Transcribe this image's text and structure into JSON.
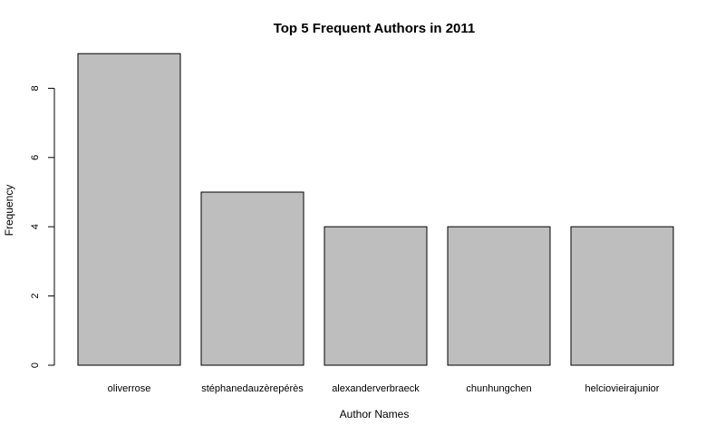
{
  "chart_data": {
    "type": "bar",
    "title": "Top 5 Frequent Authors in 2011",
    "xlabel": "Author Names",
    "ylabel": "Frequency",
    "categories": [
      "oliverrose",
      "stéphanedauzèrepérès",
      "alexanderverbraeck",
      "chunhungchen",
      "helciovieirajunior"
    ],
    "values": [
      9,
      5,
      4,
      4,
      4
    ],
    "ylim": [
      0,
      9
    ],
    "yticks": [
      0,
      2,
      4,
      6,
      8
    ],
    "bar_color": "#bebebe",
    "grid": false,
    "legend": "none"
  }
}
